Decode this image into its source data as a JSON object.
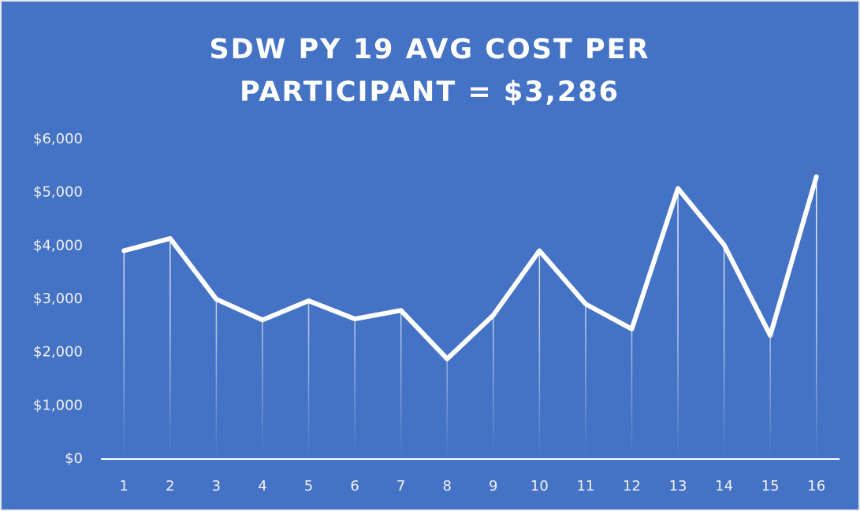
{
  "chart_data": {
    "type": "line",
    "title": "SDW PY 19 AVG COST PER PARTICIPANT = $3,286",
    "categories": [
      "1",
      "2",
      "3",
      "4",
      "5",
      "6",
      "7",
      "8",
      "9",
      "10",
      "11",
      "12",
      "13",
      "14",
      "15",
      "16"
    ],
    "series": [
      {
        "color": "#ffffff",
        "values": [
          3910,
          4140,
          3000,
          2610,
          2970,
          2630,
          2790,
          1880,
          2700,
          3910,
          2910,
          2440,
          5080,
          4020,
          2320,
          5300
        ]
      }
    ],
    "ylim": [
      0,
      6000
    ],
    "yticks": [
      {
        "value": 0,
        "label": "$0"
      },
      {
        "value": 1000,
        "label": "$1,000"
      },
      {
        "value": 2000,
        "label": "$2,000"
      },
      {
        "value": 3000,
        "label": "$3,000"
      },
      {
        "value": 4000,
        "label": "$4,000"
      },
      {
        "value": 5000,
        "label": "$5,000"
      },
      {
        "value": 6000,
        "label": "$6,000"
      }
    ],
    "drop_lines": true,
    "background": "#4472c4"
  }
}
